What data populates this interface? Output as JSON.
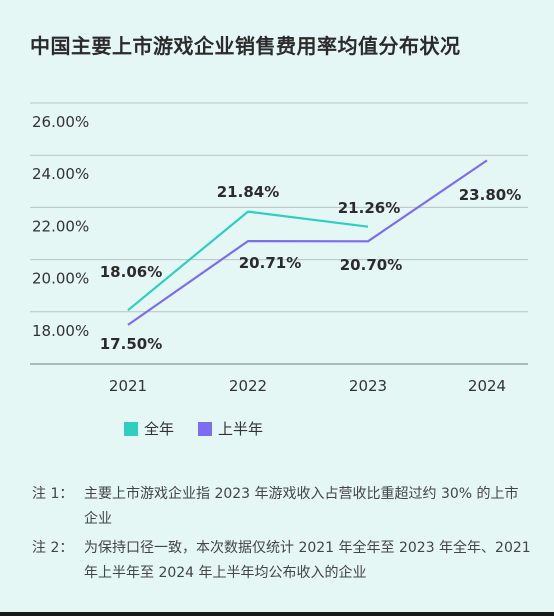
{
  "title": "中国主要上市游戏企业销售费用率均值分布状况",
  "chart_data": {
    "type": "line",
    "categories": [
      "2021",
      "2022",
      "2023",
      "2024"
    ],
    "ylim": [
      16,
      26
    ],
    "yticks": [
      "18.00%",
      "20.00%",
      "22.00%",
      "24.00%",
      "26.00%"
    ],
    "ytick_values": [
      18,
      20,
      22,
      24,
      26
    ],
    "grid": true,
    "legend_position": "bottom-left",
    "series": [
      {
        "name": "全年",
        "color": "#2ecfc0",
        "values": [
          18.06,
          21.84,
          21.26,
          null
        ],
        "labels": [
          "18.06%",
          "21.84%",
          "21.26%",
          ""
        ]
      },
      {
        "name": "上半年",
        "color": "#7b6cf0",
        "values": [
          17.5,
          20.71,
          20.7,
          23.8
        ],
        "labels": [
          "17.50%",
          "20.71%",
          "20.70%",
          "23.80%"
        ]
      }
    ]
  },
  "notes": [
    {
      "label": "注 1：",
      "text": "主要上市游戏企业指 2023 年游戏收入占营收比重超过约 30% 的上市企业"
    },
    {
      "label": "注 2：",
      "text": "为保持口径一致，本次数据仅统计 2021 年全年至 2023 年全年、2021 年上半年至 2024 年上半年均公布收入的企业"
    }
  ]
}
